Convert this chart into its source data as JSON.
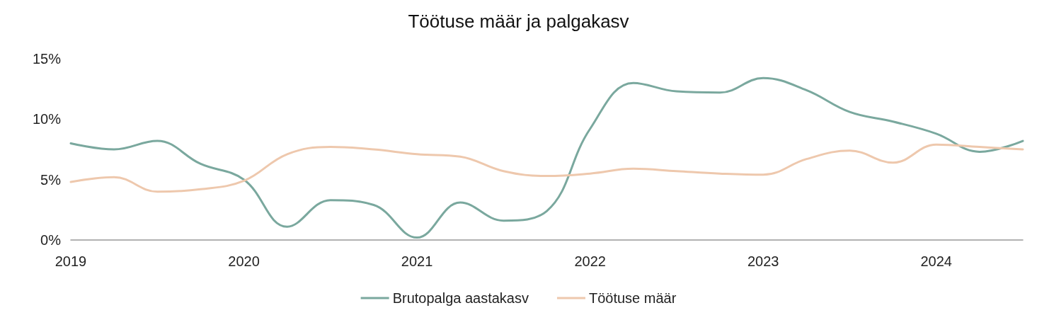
{
  "chart_data": {
    "type": "line",
    "title": "Töötuse määr ja palgakasv",
    "categories": [
      "2019",
      null,
      null,
      null,
      "2020",
      null,
      null,
      null,
      "2021",
      null,
      null,
      null,
      "2022",
      null,
      null,
      null,
      "2023",
      null,
      null,
      null,
      "2024",
      null,
      null
    ],
    "series": [
      {
        "name": "Brutopalga aastakasv",
        "color": "#7aa89e",
        "values": [
          8.0,
          7.5,
          8.2,
          6.3,
          5.0,
          1.1,
          3.3,
          2.9,
          0.2,
          3.1,
          1.6,
          2.4,
          9.2,
          13.0,
          12.3,
          12.2,
          13.4,
          12.4,
          10.6,
          9.8,
          8.8,
          7.3,
          8.2
        ]
      },
      {
        "name": "Töötuse määr",
        "color": "#eec8ad",
        "values": [
          4.8,
          5.2,
          4.0,
          4.2,
          4.9,
          7.1,
          7.7,
          7.5,
          7.1,
          6.9,
          5.7,
          5.3,
          5.5,
          5.9,
          5.7,
          5.5,
          5.4,
          6.7,
          7.4,
          6.4,
          7.9,
          7.7,
          7.5
        ]
      }
    ],
    "ylim": [
      0,
      15
    ],
    "yticks": [
      {
        "value": 0,
        "label": "0%"
      },
      {
        "value": 5,
        "label": "5%"
      },
      {
        "value": 10,
        "label": "10%"
      },
      {
        "value": 15,
        "label": "15%"
      }
    ],
    "grid": false,
    "legend": "bottom",
    "marker": "none",
    "line_style": "solid"
  }
}
